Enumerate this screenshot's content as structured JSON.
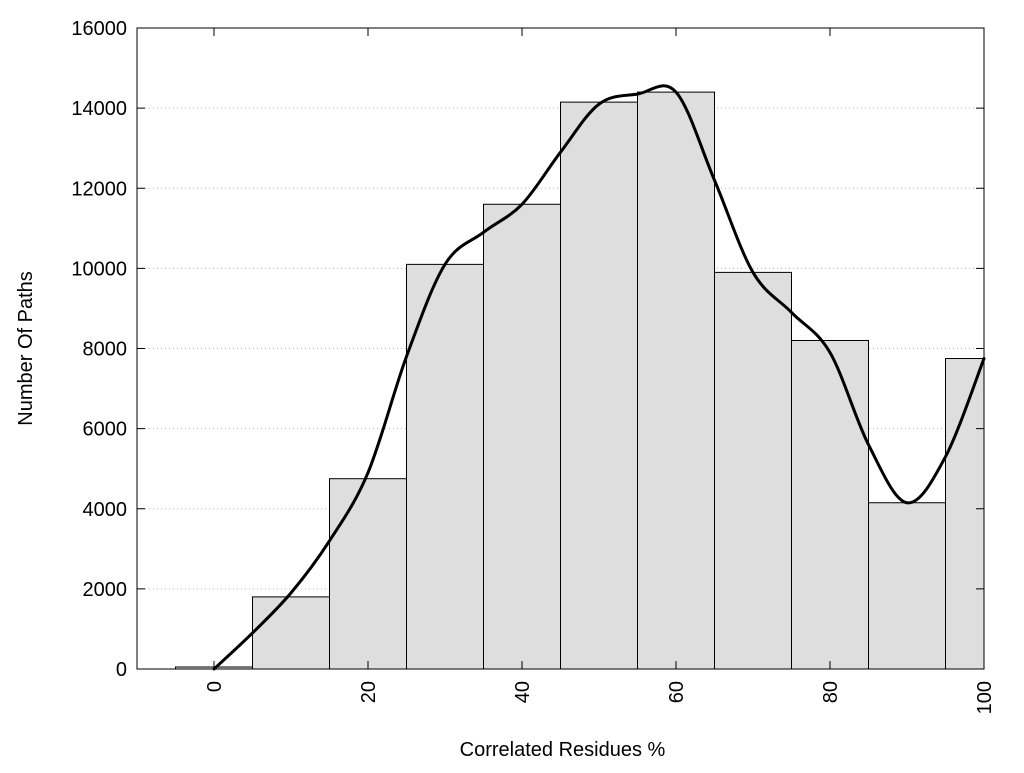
{
  "chart_data": {
    "type": "bar",
    "title": "",
    "xlabel": "Correlated Residues %",
    "ylabel": "Number Of Paths",
    "xlim": [
      -10,
      100
    ],
    "ylim": [
      0,
      16000
    ],
    "grid": true,
    "x_ticks": [
      0,
      20,
      40,
      60,
      80,
      100
    ],
    "x_tick_labels": [
      "0",
      "20",
      "40",
      "60",
      "80",
      "100"
    ],
    "y_ticks": [
      0,
      2000,
      4000,
      6000,
      8000,
      10000,
      12000,
      14000,
      16000
    ],
    "y_tick_labels": [
      "0",
      "2000",
      "4000",
      "6000",
      "8000",
      "10000",
      "12000",
      "14000",
      "16000"
    ],
    "bin_width": 10,
    "categories": [
      0,
      10,
      20,
      30,
      40,
      50,
      60,
      70,
      80,
      90,
      100
    ],
    "values": [
      50,
      1800,
      4750,
      10100,
      11600,
      14150,
      14400,
      9900,
      8200,
      4150,
      7750
    ],
    "curve": {
      "x": [
        0,
        5,
        10,
        15,
        20,
        25,
        30,
        35,
        40,
        45,
        50,
        55,
        60,
        65,
        70,
        75,
        80,
        85,
        90,
        95,
        100
      ],
      "y": [
        0,
        900,
        1900,
        3200,
        4900,
        7800,
        10100,
        10900,
        11600,
        12900,
        14100,
        14350,
        14400,
        12200,
        9900,
        8900,
        7900,
        5600,
        4150,
        5300,
        7750
      ]
    },
    "colors": {
      "bar_fill": "#dedede",
      "bar_stroke": "#000000",
      "curve": "#000000",
      "grid": "#b8b8b8"
    }
  }
}
